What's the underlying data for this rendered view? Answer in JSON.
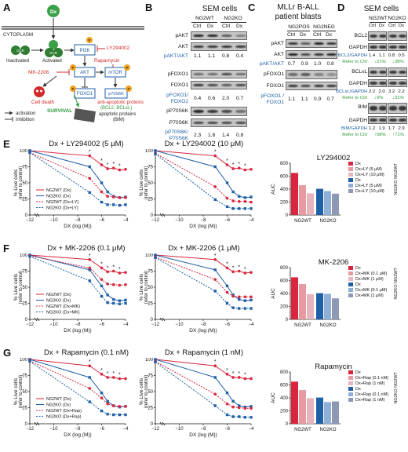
{
  "panels": {
    "a": "A",
    "b": "B",
    "c": "C",
    "d": "D",
    "e": "E",
    "f": "F",
    "g": "G"
  },
  "schematic": {
    "dx": "Dx",
    "cytoplasm": "CYTOPLASM",
    "gcr": "GCR",
    "inactivated": "Inactivated",
    "activated": "Activated",
    "p": "P",
    "pi3k": "PI3K",
    "akt": "AKT",
    "mtor": "mTOR",
    "foxo": "FOXO1",
    "p70": "p70S6K",
    "ly": "LY294002",
    "rapa": "Rapamycin",
    "mk": "MK-2206",
    "death": "Cell death",
    "survival": "SURVIVAL",
    "anti1": "anti-apoptotic proteins",
    "anti2": "(BCL2, BCLxL)",
    "apo1": "apoptotic proteins",
    "apo2": "(BIM)",
    "leg_act": "activation",
    "leg_inh": "inhibition"
  },
  "panel_b": {
    "title": "SEM cells",
    "g1": "NG2WT",
    "g2": "NG2KO",
    "ctrl": "Ctrl",
    "dx": "Dx",
    "rows": [
      "pAKT",
      "AKT",
      "pAKT/AKT",
      "pFOXO1",
      "FOXO1",
      "pFOXO1/",
      "FOXO1",
      "pP70S6K",
      "P70S6K",
      "pP70S6K/",
      "P70S6K"
    ],
    "vals1": [
      "1.1",
      "1.1",
      "0.8",
      "0.4"
    ],
    "vals2": [
      "0.4",
      "0.6",
      "2.0",
      "0.7"
    ],
    "vals3": [
      "2.3",
      "1.8",
      "1.4",
      "0.8"
    ]
  },
  "panel_c": {
    "title1": "MLLr B-ALL",
    "title2": "patient blasts",
    "g1": "NG2POS",
    "g2": "NG2NEG",
    "ctrl": "Ctrl",
    "dx": "Dx",
    "rows": [
      "pAKT",
      "AKT",
      "pAKT/AKT",
      "pFOXO1",
      "FOXO1",
      "pFOXO1 /",
      "FOXO1"
    ],
    "vals1": [
      "0.7",
      "0.9",
      "1.0",
      "0.8"
    ],
    "vals2": [
      "1.1",
      "1.1",
      "0.9",
      "0.7"
    ]
  },
  "panel_d": {
    "title": "SEM cells",
    "g1": "NG2WT",
    "g2": "NG2KO",
    "ctrl": "Ctrl",
    "dx": "Dx",
    "rows": [
      "BCL2",
      "GAPDH",
      "BCL2/GAPDH",
      "Refer to Ctrl",
      "BCLxL",
      "GAPDH",
      "BCLxL/GAPDH",
      "Refer to Ctrl",
      "BIM",
      "GAPDH",
      "BIM/GAPDH",
      "Refer to Ctrl"
    ],
    "bcl2": [
      "1.4",
      "1.1",
      "0.8",
      "0.5"
    ],
    "bcl2_ref": [
      "↓21%",
      "↓38%"
    ],
    "bclxl": [
      "2.2",
      "2.0",
      "3.2",
      "2.2"
    ],
    "bclxl_ref": [
      "↓9%",
      "↓31%"
    ],
    "bim": [
      "1.2",
      "1.9",
      "1.7",
      "2.9"
    ],
    "bim_ref": [
      "↑58%",
      "↑71%"
    ]
  },
  "rows_info": {
    "e": {
      "t1": "Dx + LY294002 (5 μM)",
      "t2": "Dx + LY294002 (10 μM)",
      "bar_title": "LY294002",
      "leg": [
        "NG2WT (Dx)",
        "NG2KO (Dx)",
        "NG2WT (Dx+LY)",
        "NG2KO (Dx+LY)"
      ],
      "bar_leg": [
        "Dx",
        "Dx+LY (5 μM)",
        "Dx+LY (10 μM)",
        "Dx",
        "Dx+LY (5 μM)",
        "Dx+LY (10 μM)"
      ]
    },
    "f": {
      "t1": "Dx + MK-2206 (0.1 μM)",
      "t2": "Dx + MK-2206 (1 μM)",
      "bar_title": "MK-2206",
      "leg": [
        "NG2WT (Dx)",
        "NG2KO (Dx)",
        "NG2WT (Dx+MK)",
        "NG2KO (Dx+MK)"
      ],
      "bar_leg": [
        "Dx",
        "Dx+MK (0.1 μM)",
        "Dx+MK (1 μM)",
        "Dx",
        "Dx+MK (0.1 μM)",
        "Dx+MK (1 μM)"
      ]
    },
    "g": {
      "t1": "Dx + Rapamycin (0.1 nM)",
      "t2": "Dx + Rapamycin (1 nM)",
      "bar_title": "Rapamycin",
      "leg": [
        "NG2WT (Dx)",
        "NG2KO (Dx)",
        "NG2WT (Dx+Rap)",
        "NG2KO (Dx+Rap)"
      ],
      "bar_leg": [
        "Dx",
        "Dx+Rap (0.1 nM)",
        "Dx+Rap (1 nM)",
        "Dx",
        "Dx+Rap (0.1 nM)",
        "Dx+Rap (1 nM)"
      ]
    }
  },
  "axes": {
    "ylabel1": "% Live cells",
    "ylabel2": "(refer to control)",
    "xlabel": "DX (log (M))",
    "auc": "AUC",
    "ng2wt": "NG2WT",
    "ng2ko": "NG2KO",
    "star": "*"
  },
  "colors": {
    "red": "#d7263d",
    "blue": "#1f5fa8",
    "lightred": "#e89aa3",
    "lightblue": "#8fb0d6",
    "green": "#2e9a3a"
  },
  "chart_data": [
    {
      "type": "line",
      "title": "Dx + LY294002 (5 μM)",
      "xlabel": "DX (log (M))",
      "ylabel": "% Live cells (refer to control)",
      "xlim": [
        -12,
        -4
      ],
      "ylim": [
        0,
        100
      ],
      "x": [
        -12,
        -7,
        -6,
        -5.5,
        -5,
        -4.5,
        -4
      ],
      "series": [
        {
          "name": "NG2WT (Dx)",
          "values": [
            100,
            92,
            78,
            72,
            73,
            70,
            71
          ]
        },
        {
          "name": "NG2KO (Dx)",
          "values": [
            100,
            75,
            50,
            36,
            29,
            27,
            28
          ]
        },
        {
          "name": "NG2WT (Dx+LY)",
          "values": [
            97,
            57,
            36,
            29,
            28,
            27,
            27
          ]
        },
        {
          "name": "NG2KO (Dx+LY)",
          "values": [
            97,
            35,
            20,
            16,
            16,
            15,
            16
          ]
        }
      ]
    },
    {
      "type": "line",
      "title": "Dx + LY294002 (10 μM)",
      "xlabel": "DX (log (M))",
      "ylabel": "% Live cells (refer to control)",
      "xlim": [
        -12,
        -4
      ],
      "ylim": [
        0,
        100
      ],
      "x": [
        -12,
        -7,
        -6,
        -5.5,
        -5,
        -4.5,
        -4
      ],
      "series": [
        {
          "name": "NG2WT (Dx)",
          "values": [
            100,
            92,
            78,
            72,
            73,
            70,
            71
          ]
        },
        {
          "name": "NG2KO (Dx)",
          "values": [
            100,
            75,
            50,
            36,
            29,
            27,
            28
          ]
        },
        {
          "name": "NG2WT (Dx+LY)",
          "values": [
            96,
            44,
            26,
            22,
            21,
            21,
            20
          ]
        },
        {
          "name": "NG2KO (Dx+LY)",
          "values": [
            95,
            24,
            13,
            10,
            10,
            10,
            10
          ]
        }
      ]
    },
    {
      "type": "bar",
      "title": "LY294002",
      "ylabel": "AUC",
      "ylim": [
        0,
        800
      ],
      "categories": [
        "NG2WT",
        "NG2KO"
      ],
      "series": [
        {
          "name": "Dx",
          "values": [
            650,
            405
          ]
        },
        {
          "name": "Dx+LY (5 μM)",
          "values": [
            460,
            370
          ]
        },
        {
          "name": "Dx+LY (10 μM)",
          "values": [
            335,
            330
          ]
        }
      ]
    },
    {
      "type": "line",
      "title": "Dx + MK-2206 (0.1 μM)",
      "xlabel": "DX (log (M))",
      "ylabel": "% Live cells (refer to control)",
      "xlim": [
        -12,
        -4
      ],
      "ylim": [
        0,
        100
      ],
      "x": [
        -12,
        -7,
        -6,
        -5.5,
        -5,
        -4.5,
        -4
      ],
      "series": [
        {
          "name": "NG2WT (Dx)",
          "values": [
            100,
            93,
            80,
            74,
            75,
            72,
            73
          ]
        },
        {
          "name": "NG2KO (Dx)",
          "values": [
            100,
            77,
            52,
            38,
            31,
            29,
            30
          ]
        },
        {
          "name": "NG2WT (Dx+MK)",
          "values": [
            99,
            80,
            62,
            55,
            54,
            53,
            54
          ]
        },
        {
          "name": "NG2KO (Dx+MK)",
          "values": [
            98,
            60,
            36,
            26,
            25,
            24,
            25
          ]
        }
      ]
    },
    {
      "type": "line",
      "title": "Dx + MK-2206 (1 μM)",
      "xlabel": "DX (log (M))",
      "ylabel": "% Live cells (refer to control)",
      "xlim": [
        -12,
        -4
      ],
      "ylim": [
        0,
        100
      ],
      "x": [
        -12,
        -7,
        -6,
        -5.5,
        -5,
        -4.5,
        -4
      ],
      "series": [
        {
          "name": "NG2WT (Dx)",
          "values": [
            100,
            93,
            80,
            74,
            75,
            72,
            73
          ]
        },
        {
          "name": "NG2KO (Dx)",
          "values": [
            100,
            77,
            52,
            38,
            31,
            29,
            30
          ]
        },
        {
          "name": "NG2WT (Dx+MK)",
          "values": [
            97,
            62,
            42,
            36,
            35,
            35,
            35
          ]
        },
        {
          "name": "NG2KO (Dx+MK)",
          "values": [
            96,
            44,
            25,
            18,
            17,
            17,
            17
          ]
        }
      ]
    },
    {
      "type": "bar",
      "title": "MK-2206",
      "ylabel": "AUC",
      "ylim": [
        0,
        800
      ],
      "categories": [
        "NG2WT",
        "NG2KO"
      ],
      "series": [
        {
          "name": "Dx",
          "values": [
            650,
            405
          ]
        },
        {
          "name": "Dx+MK (0.1 μM)",
          "values": [
            545,
            395
          ]
        },
        {
          "name": "Dx+MK (1 μM)",
          "values": [
            390,
            325
          ]
        }
      ]
    },
    {
      "type": "line",
      "title": "Dx + Rapamycin (0.1 nM)",
      "xlabel": "DX (log (M))",
      "ylabel": "% Live cells (refer to control)",
      "xlim": [
        -12,
        -4
      ],
      "ylim": [
        0,
        100
      ],
      "x": [
        -12,
        -7,
        -6,
        -5.5,
        -5,
        -4.5,
        -4
      ],
      "series": [
        {
          "name": "NG2WT (Dx)",
          "values": [
            100,
            90,
            77,
            72,
            72,
            70,
            70
          ]
        },
        {
          "name": "NG2KO (Dx)",
          "values": [
            100,
            72,
            48,
            35,
            28,
            26,
            27
          ]
        },
        {
          "name": "NG2WT (Dx+Rap)",
          "values": [
            98,
            55,
            40,
            31,
            28,
            27,
            27
          ]
        },
        {
          "name": "NG2KO (Dx+Rap)",
          "values": [
            97,
            34,
            20,
            15,
            14,
            14,
            14
          ]
        }
      ]
    },
    {
      "type": "line",
      "title": "Dx + Rapamycin (1 nM)",
      "xlabel": "DX (log (M))",
      "ylabel": "% Live cells (refer to control)",
      "xlim": [
        -12,
        -4
      ],
      "ylim": [
        0,
        100
      ],
      "x": [
        -12,
        -7,
        -6,
        -5.5,
        -5,
        -4.5,
        -4
      ],
      "series": [
        {
          "name": "NG2WT (Dx)",
          "values": [
            100,
            90,
            77,
            72,
            72,
            70,
            70
          ]
        },
        {
          "name": "NG2KO (Dx)",
          "values": [
            100,
            72,
            48,
            35,
            28,
            26,
            27
          ]
        },
        {
          "name": "NG2WT (Dx+Rap)",
          "values": [
            97,
            46,
            31,
            26,
            25,
            24,
            24
          ]
        },
        {
          "name": "NG2KO (Dx+Rap)",
          "values": [
            96,
            28,
            14,
            11,
            11,
            10,
            10
          ]
        }
      ]
    },
    {
      "type": "bar",
      "title": "Rapamycin",
      "ylabel": "AUC",
      "ylim": [
        0,
        800
      ],
      "categories": [
        "NG2WT",
        "NG2KO"
      ],
      "series": [
        {
          "name": "Dx",
          "values": [
            650,
            405
          ]
        },
        {
          "name": "Dx+Rap (0.1 nM)",
          "values": [
            520,
            335
          ]
        },
        {
          "name": "Dx+Rap (1 nM)",
          "values": [
            395,
            345
          ]
        }
      ]
    }
  ]
}
